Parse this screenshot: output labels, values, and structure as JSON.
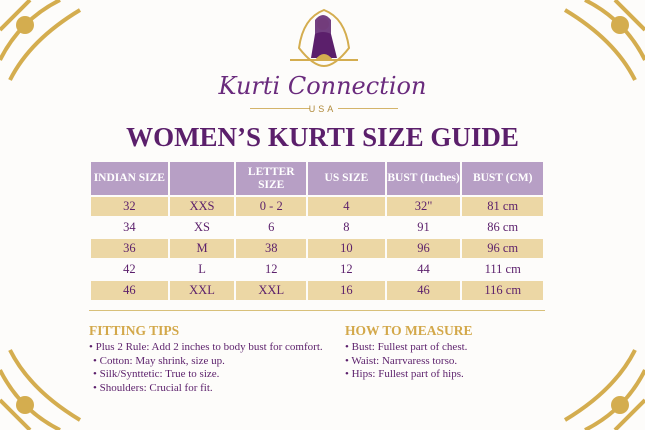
{
  "brand": {
    "name": "Kurti Connection",
    "sub": "USA"
  },
  "title": "WOMEN’S KURTI SIZE GUIDE",
  "table": {
    "headers": [
      "INDIAN SIZE",
      "",
      "LETTER SIZE",
      "US SIZE",
      "BUST (Inches)",
      "BUST (CM)"
    ],
    "rows": [
      [
        "32",
        "XXS",
        "0 - 2",
        "4",
        "32\"",
        "81 cm"
      ],
      [
        "34",
        "XS",
        "6",
        "8",
        "91",
        "86 cm"
      ],
      [
        "36",
        "M",
        "38",
        "10",
        "96",
        "96 cm"
      ],
      [
        "42",
        "L",
        "12",
        "12",
        "44",
        "111 cm"
      ],
      [
        "46",
        "XXL",
        "XXL",
        "16",
        "46",
        "116 cm"
      ]
    ]
  },
  "fitting": {
    "heading": "FITTING TIPS",
    "items": [
      "Plus 2 Rule: Add 2 inches to body bust for comfort.",
      "Cotton: May shrink, size up.",
      "Silk/Synttetic: True to size.",
      "Shoulders: Crucial for fit."
    ]
  },
  "measure": {
    "heading": "HOW TO MEASURE",
    "items": [
      "Bust: Fullest part of chest.",
      "Waist: Narrvaress torso.",
      "Hips: Fullest part of hips."
    ]
  },
  "colors": {
    "purple": "#5b1f6b",
    "gold": "#d3a84a",
    "header": "#b79fc5",
    "row": "#ecd7a5"
  }
}
